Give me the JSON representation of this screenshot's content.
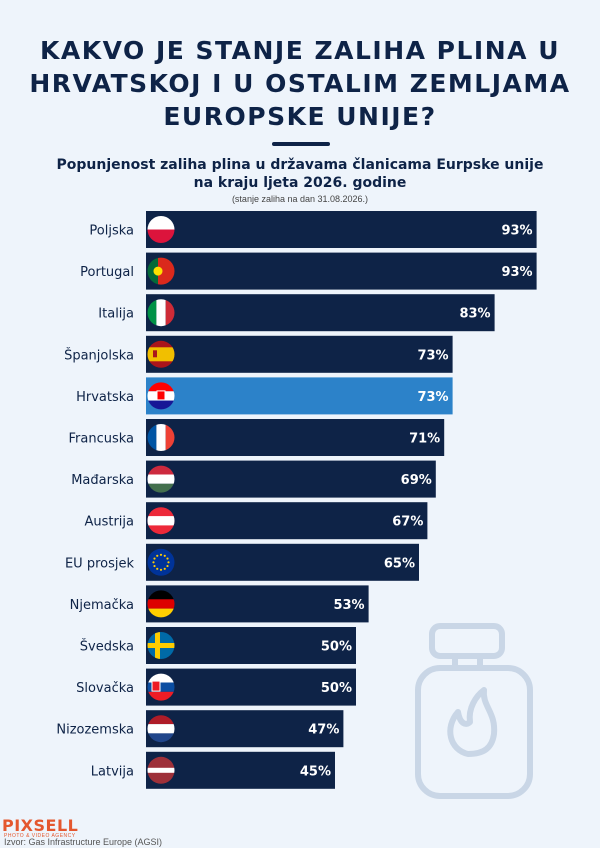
{
  "title": "KAKVO JE STANJE ZALIHA PLINA U\nHRVATSKOJ I U OSTALIM ZEMLJAMA\nEUROPSKE UNIJE?",
  "subtitle": "Popunjenost zaliha plina u državama članicama Eurpske unije\nna kraju ljeta 2026. godine",
  "note": "(stanje zaliha na dan 31.08.2026.)",
  "logo": "PIXSELL",
  "logo_sub": "PHOTO & VIDEO AGENCY",
  "source": "Izvor: Gas Infrastructure Europe (AGSI)",
  "colors": {
    "bar": "#0e2347",
    "highlight": "#2c82c9",
    "background": "#eef4fb"
  },
  "chart_data": {
    "type": "bar",
    "orientation": "horizontal",
    "categories": [
      "Poljska",
      "Portugal",
      "Italija",
      "Španjolska",
      "Hrvatska",
      "Francuska",
      "Mađarska",
      "Austrija",
      "EU prosjek",
      "Njemačka",
      "Švedska",
      "Slovačka",
      "Nizozemska",
      "Latvija"
    ],
    "values": [
      93,
      93,
      83,
      73,
      73,
      71,
      69,
      67,
      65,
      53,
      50,
      50,
      47,
      45
    ],
    "value_labels": [
      "93%",
      "93%",
      "83%",
      "73%",
      "73%",
      "71%",
      "69%",
      "67%",
      "65%",
      "53%",
      "50%",
      "50%",
      "47%",
      "45%"
    ],
    "highlight": "Hrvatska",
    "flag_icons": [
      "poland-flag-icon",
      "portugal-flag-icon",
      "italy-flag-icon",
      "spain-flag-icon",
      "croatia-flag-icon",
      "france-flag-icon",
      "hungary-flag-icon",
      "austria-flag-icon",
      "eu-flag-icon",
      "germany-flag-icon",
      "sweden-flag-icon",
      "slovakia-flag-icon",
      "netherlands-flag-icon",
      "latvia-flag-icon"
    ],
    "xlim": [
      0,
      100
    ],
    "unit": "%",
    "grid": false,
    "legend": "none"
  }
}
